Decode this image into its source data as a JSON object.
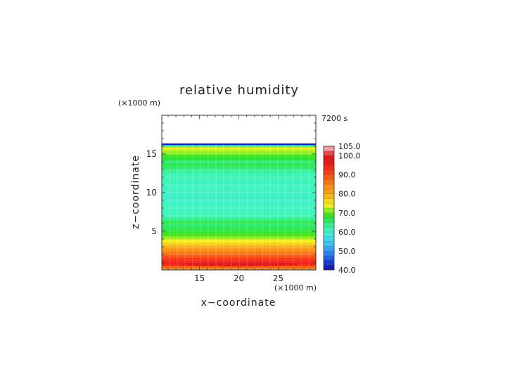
{
  "chart_data": {
    "type": "heatmap",
    "title": "relative humidity",
    "xlabel": "x−coordinate",
    "ylabel": "z−coordinate",
    "x_unit": "(×1000 m)",
    "y_unit": "(×1000 m)",
    "time_label": "7200 s",
    "xlim": [
      10.2,
      29.8
    ],
    "ylim": [
      0,
      20
    ],
    "x_ticks": [
      15,
      20,
      25
    ],
    "x_tick_labels": [
      "15",
      "20",
      "25"
    ],
    "y_ticks": [
      5,
      10,
      15
    ],
    "y_tick_labels": [
      "5",
      "10",
      "15"
    ],
    "grid": true,
    "colorbar": {
      "ticks": [
        40,
        50,
        60,
        70,
        80,
        90,
        100,
        105
      ],
      "tick_labels": [
        "40.0",
        "50.0",
        "60.0",
        "70.0",
        "80.0",
        "90.0",
        "100.0",
        "105.0"
      ],
      "range": [
        40,
        105
      ]
    },
    "profile": {
      "z": [
        0.0,
        0.3,
        0.6,
        0.9,
        1.2,
        1.6,
        2.0,
        2.4,
        2.8,
        3.2,
        3.6,
        4.0,
        4.4,
        4.8,
        5.2,
        5.6,
        6.0,
        6.4,
        6.8,
        7.5,
        8.5,
        10.0,
        11.5,
        12.5,
        13.0,
        13.4,
        13.8,
        14.2,
        14.6,
        15.0,
        15.4,
        15.7,
        15.9,
        16.0,
        16.1,
        16.2,
        16.25
      ],
      "rh": [
        84,
        88,
        94,
        96,
        92,
        89,
        86,
        83,
        80,
        77,
        74,
        71,
        69,
        67,
        66,
        65,
        66,
        64,
        62,
        61,
        60,
        61,
        62,
        63,
        65,
        66,
        65,
        67,
        69,
        71,
        73,
        74,
        70,
        62,
        54,
        46,
        40
      ]
    }
  }
}
